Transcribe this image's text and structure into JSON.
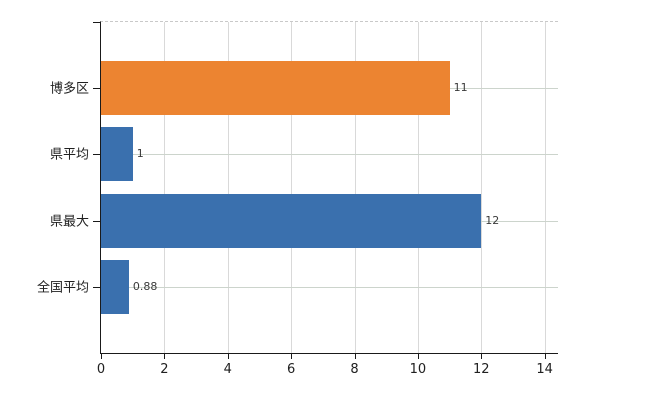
{
  "chart_data": {
    "type": "bar",
    "orientation": "horizontal",
    "title": "",
    "categories": [
      "博多区",
      "県平均",
      "県最大",
      "全国平均"
    ],
    "values": [
      11,
      1,
      12,
      0.88
    ],
    "value_labels": [
      "11",
      "1",
      "12",
      "0.88"
    ],
    "bar_colors": [
      "#ec8431",
      "#3a70ae",
      "#3a70ae",
      "#3a70ae"
    ],
    "x_tick_values": [
      0,
      2,
      4,
      6,
      8,
      10,
      12,
      14
    ],
    "x_tick_labels": [
      "0",
      "2",
      "4",
      "6",
      "8",
      "10",
      "12",
      "14"
    ],
    "xlim": [
      0,
      14.42
    ],
    "grid": "on",
    "legend": "none",
    "ylabel": "",
    "xlabel": ""
  },
  "colors": {
    "background": "#ffffff",
    "axis": "#1a1a1a",
    "gridline_vertical": "#d9d9d9",
    "gridline_horizontal": "#ccd4cc",
    "plot_top_border": "#c9c9c9",
    "bar_orange": "#ec8431",
    "bar_blue": "#3a70ae",
    "tick_text": "#202020",
    "value_text": "#3a3a3a"
  }
}
